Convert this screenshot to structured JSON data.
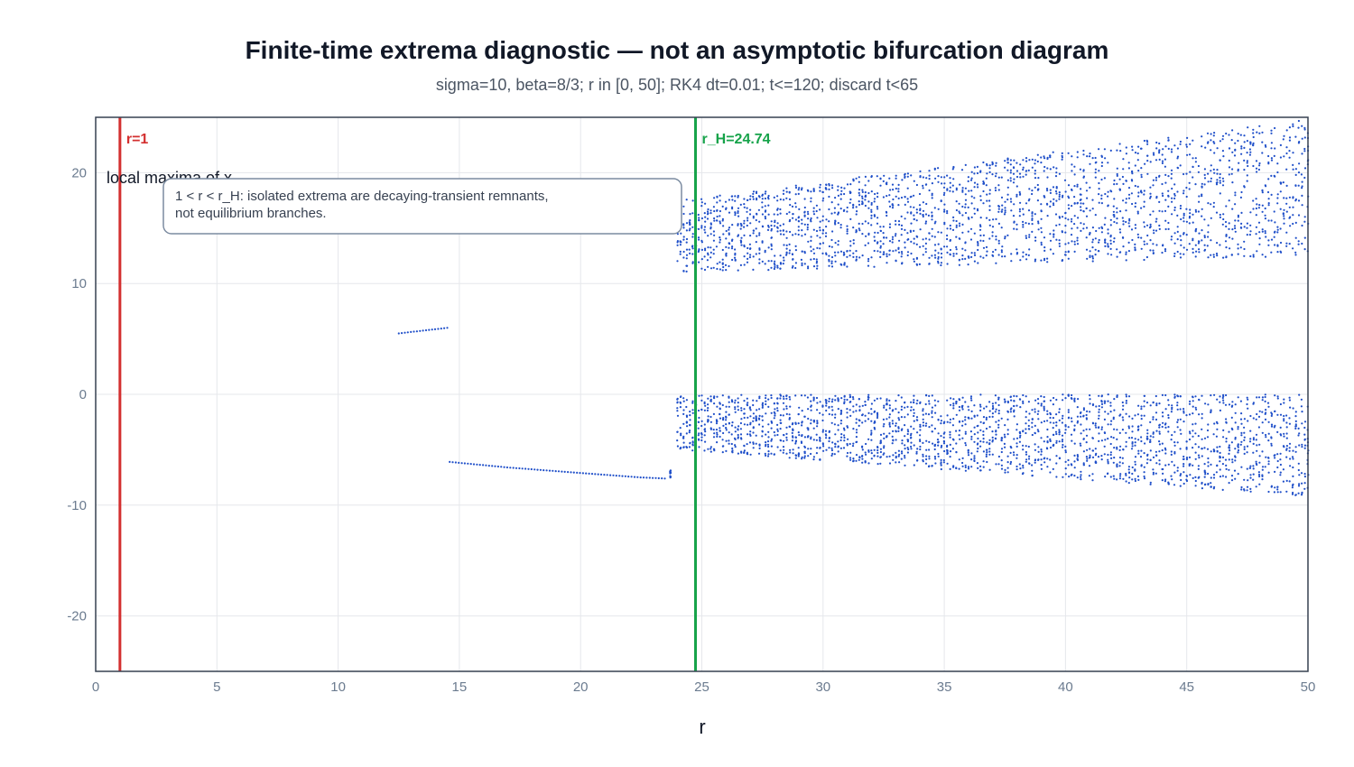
{
  "chart_data": {
    "type": "scatter",
    "title": "Finite-time extrema diagnostic — not an asymptotic bifurcation diagram",
    "subtitle": "sigma=10, beta=8/3; r in [0, 50]; RK4 dt=0.01; t<=120; discard t<65",
    "xlabel": "r",
    "ylabel": "",
    "xlim": [
      0,
      50
    ],
    "ylim": [
      -25,
      25
    ],
    "x_ticks": [
      0,
      5,
      10,
      15,
      20,
      25,
      30,
      35,
      40,
      45,
      50
    ],
    "y_ticks": [
      -20,
      -10,
      0,
      10,
      20
    ],
    "grid": true,
    "series": [
      {
        "name": "local maxima of x",
        "color": "#1f4fc9",
        "segments": [
          {
            "kind": "line",
            "r": [
              12.5,
              14.5
            ],
            "x": [
              5.5,
              6.0
            ]
          },
          {
            "kind": "curve",
            "r": [
              14.6,
              17.0,
              20.0,
              22.5,
              23.5
            ],
            "x": [
              -6.1,
              -6.6,
              -7.1,
              -7.5,
              -7.6
            ]
          },
          {
            "kind": "band",
            "r": [
              23.7,
              23.8
            ],
            "x_min": -7.6,
            "x_max": -6.8
          },
          {
            "kind": "band",
            "r": [
              24.0,
              50.0
            ],
            "x_min_start": 11.0,
            "x_min_end": 12.5,
            "x_max_start": 17.5,
            "x_max_end": 24.8
          },
          {
            "kind": "band",
            "r": [
              24.0,
              50.0
            ],
            "x_min_start": -5.0,
            "x_min_end": -9.2,
            "x_max_start": 0.0,
            "x_max_end": 0.0
          }
        ]
      }
    ],
    "vlines": [
      {
        "x": 1,
        "label": "r=1",
        "color": "#d32f2f"
      },
      {
        "x": 24.74,
        "label": "r_H=24.74",
        "color": "#16a34a"
      }
    ],
    "annotation": {
      "lines": [
        "1 < r < r_H: isolated extrema are decaying-transient remnants,",
        "not equilibrium branches."
      ]
    }
  }
}
